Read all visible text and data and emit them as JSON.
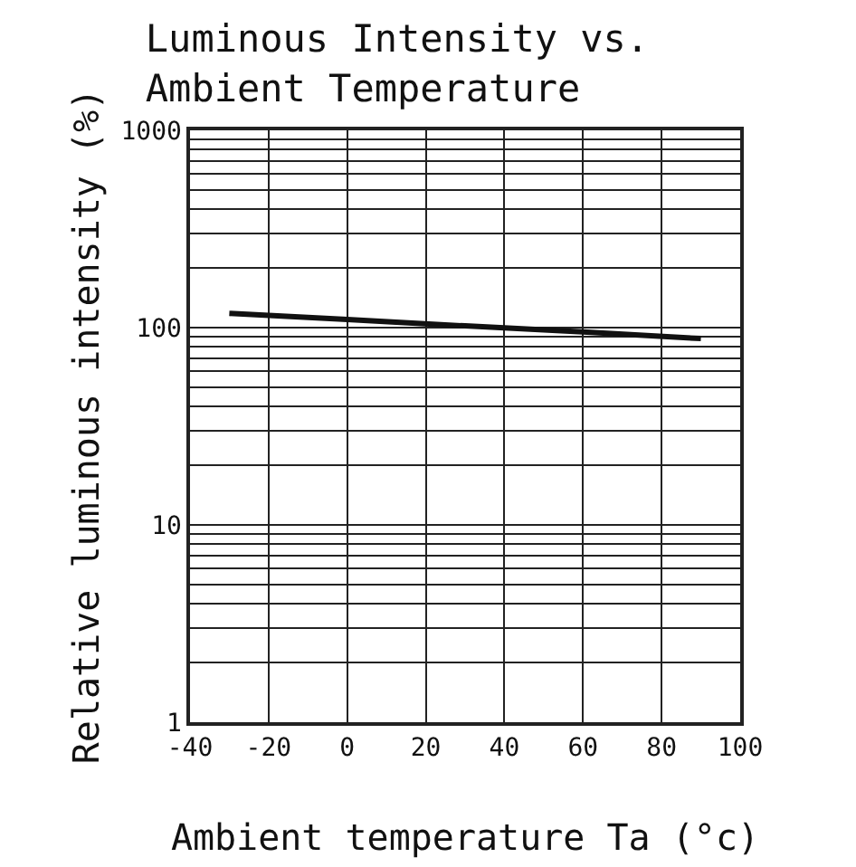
{
  "chart_data": {
    "type": "line",
    "title": "Luminous Intensity vs.\nAmbient Temperature",
    "xlabel": "Ambient temperature Ta (°c)",
    "ylabel": "Relative luminous intensity (%)",
    "x": [
      -30,
      0,
      30,
      60,
      90
    ],
    "series": [
      {
        "color": "#111111",
        "values": [
          118,
          110,
          102,
          95,
          88
        ]
      }
    ],
    "xlim": [
      -40,
      100
    ],
    "xticks": [
      -40,
      -20,
      0,
      20,
      40,
      60,
      80,
      100
    ],
    "ylim": [
      1,
      1000
    ],
    "log": true,
    "yticks": [
      1,
      {
        "value": 2,
        "label": null
      },
      {
        "value": 3,
        "label": null
      },
      {
        "value": 4,
        "label": null
      },
      {
        "value": 5,
        "label": null
      },
      {
        "value": 6,
        "label": null
      },
      {
        "value": 7,
        "label": null
      },
      {
        "value": 8,
        "label": null
      },
      {
        "value": 9,
        "label": null
      },
      10,
      {
        "value": 20,
        "label": null
      },
      {
        "value": 30,
        "label": null
      },
      {
        "value": 40,
        "label": null
      },
      {
        "value": 50,
        "label": null
      },
      {
        "value": 60,
        "label": null
      },
      {
        "value": 70,
        "label": null
      },
      {
        "value": 80,
        "label": null
      },
      {
        "value": 90,
        "label": null
      },
      100,
      {
        "value": 200,
        "label": null
      },
      {
        "value": 300,
        "label": null
      },
      {
        "value": 400,
        "label": null
      },
      {
        "value": 500,
        "label": null
      },
      {
        "value": 600,
        "label": null
      },
      {
        "value": 700,
        "label": null
      },
      {
        "value": 800,
        "label": null
      },
      {
        "value": 900,
        "label": null
      },
      1000
    ],
    "grid": true,
    "marker": "none",
    "line_style": "solid"
  }
}
